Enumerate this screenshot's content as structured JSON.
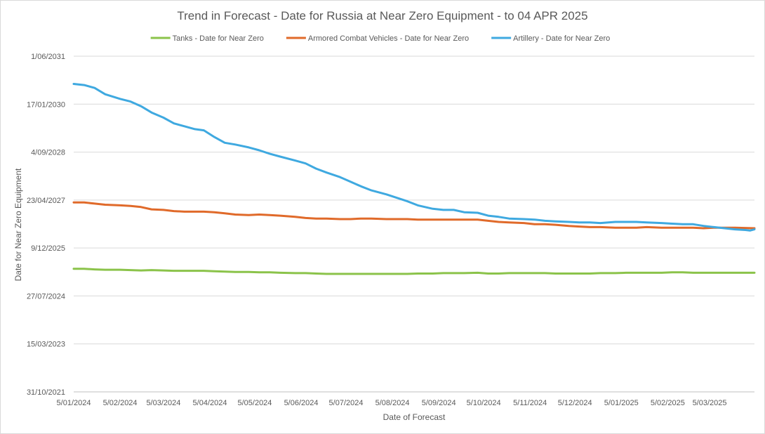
{
  "chart_data": {
    "type": "line",
    "title": "Trend in Forecast - Date for Russia at Near Zero Equipment - to 04 APR 2025",
    "xlabel": "Date of Forecast",
    "ylabel": "Date for Near Zero Equipment",
    "x_ticks": [
      "5/01/2024",
      "5/02/2024",
      "5/03/2024",
      "5/04/2024",
      "5/05/2024",
      "5/06/2024",
      "5/07/2024",
      "5/08/2024",
      "5/09/2024",
      "5/10/2024",
      "5/11/2024",
      "5/12/2024",
      "5/01/2025",
      "5/02/2025",
      "5/03/2025"
    ],
    "y_ticks": [
      "31/10/2021",
      "15/03/2023",
      "27/07/2024",
      "9/12/2025",
      "23/04/2027",
      "4/09/2028",
      "17/01/2030",
      "1/06/2031"
    ],
    "xlim": [
      "2024-01-05",
      "2025-04-04"
    ],
    "ylim": [
      "2021-10-31",
      "2031-06-01"
    ],
    "grid": true,
    "legend_position": "top",
    "series": [
      {
        "name": "Tanks - Date for Near Zero",
        "color": "#8BC34A",
        "points": [
          [
            "2024-01-05",
            "2025-05-06"
          ],
          [
            "2024-01-12",
            "2025-05-06"
          ],
          [
            "2024-01-19",
            "2025-04-30"
          ],
          [
            "2024-01-26",
            "2025-04-26"
          ],
          [
            "2024-02-05",
            "2025-04-26"
          ],
          [
            "2024-02-12",
            "2025-04-23"
          ],
          [
            "2024-02-19",
            "2025-04-19"
          ],
          [
            "2024-02-26",
            "2025-04-23"
          ],
          [
            "2024-03-05",
            "2025-04-19"
          ],
          [
            "2024-03-12",
            "2025-04-15"
          ],
          [
            "2024-03-19",
            "2025-04-15"
          ],
          [
            "2024-04-01",
            "2025-04-15"
          ],
          [
            "2024-04-08",
            "2025-04-11"
          ],
          [
            "2024-04-15",
            "2025-04-07"
          ],
          [
            "2024-04-22",
            "2025-04-03"
          ],
          [
            "2024-05-01",
            "2025-04-03"
          ],
          [
            "2024-05-08",
            "2025-03-30"
          ],
          [
            "2024-05-15",
            "2025-03-30"
          ],
          [
            "2024-05-22",
            "2025-03-26"
          ],
          [
            "2024-06-01",
            "2025-03-22"
          ],
          [
            "2024-06-08",
            "2025-03-22"
          ],
          [
            "2024-06-15",
            "2025-03-18"
          ],
          [
            "2024-06-22",
            "2025-03-14"
          ],
          [
            "2024-07-01",
            "2025-03-14"
          ],
          [
            "2024-07-15",
            "2025-03-14"
          ],
          [
            "2024-08-01",
            "2025-03-14"
          ],
          [
            "2024-08-15",
            "2025-03-14"
          ],
          [
            "2024-08-22",
            "2025-03-18"
          ],
          [
            "2024-09-01",
            "2025-03-18"
          ],
          [
            "2024-09-08",
            "2025-03-22"
          ],
          [
            "2024-09-22",
            "2025-03-22"
          ],
          [
            "2024-10-01",
            "2025-03-26"
          ],
          [
            "2024-10-08",
            "2025-03-18"
          ],
          [
            "2024-10-15",
            "2025-03-18"
          ],
          [
            "2024-10-22",
            "2025-03-22"
          ],
          [
            "2024-11-01",
            "2025-03-22"
          ],
          [
            "2024-11-15",
            "2025-03-22"
          ],
          [
            "2024-11-22",
            "2025-03-18"
          ],
          [
            "2024-12-01",
            "2025-03-18"
          ],
          [
            "2024-12-15",
            "2025-03-18"
          ],
          [
            "2024-12-22",
            "2025-03-22"
          ],
          [
            "2025-01-01",
            "2025-03-22"
          ],
          [
            "2025-01-08",
            "2025-03-26"
          ],
          [
            "2025-01-22",
            "2025-03-26"
          ],
          [
            "2025-02-01",
            "2025-03-26"
          ],
          [
            "2025-02-08",
            "2025-03-30"
          ],
          [
            "2025-02-15",
            "2025-03-30"
          ],
          [
            "2025-02-22",
            "2025-03-26"
          ],
          [
            "2025-03-05",
            "2025-03-26"
          ],
          [
            "2025-03-20",
            "2025-03-26"
          ],
          [
            "2025-04-04",
            "2025-03-26"
          ]
        ]
      },
      {
        "name": "Armored Combat Vehicles - Date for Near Zero",
        "color": "#E06A2A",
        "points": [
          [
            "2024-01-05",
            "2027-03-29"
          ],
          [
            "2024-01-12",
            "2027-03-29"
          ],
          [
            "2024-01-19",
            "2027-03-17"
          ],
          [
            "2024-01-26",
            "2027-03-05"
          ],
          [
            "2024-02-05",
            "2027-02-27"
          ],
          [
            "2024-02-12",
            "2027-02-21"
          ],
          [
            "2024-02-19",
            "2027-02-09"
          ],
          [
            "2024-02-26",
            "2027-01-16"
          ],
          [
            "2024-03-05",
            "2027-01-10"
          ],
          [
            "2024-03-12",
            "2026-12-29"
          ],
          [
            "2024-03-19",
            "2026-12-23"
          ],
          [
            "2024-04-01",
            "2026-12-23"
          ],
          [
            "2024-04-08",
            "2026-12-17"
          ],
          [
            "2024-04-15",
            "2026-12-05"
          ],
          [
            "2024-04-22",
            "2026-11-23"
          ],
          [
            "2024-05-01",
            "2026-11-17"
          ],
          [
            "2024-05-08",
            "2026-11-23"
          ],
          [
            "2024-05-15",
            "2026-11-17"
          ],
          [
            "2024-05-22",
            "2026-11-11"
          ],
          [
            "2024-06-01",
            "2026-10-30"
          ],
          [
            "2024-06-08",
            "2026-10-18"
          ],
          [
            "2024-06-15",
            "2026-10-12"
          ],
          [
            "2024-06-22",
            "2026-10-12"
          ],
          [
            "2024-07-01",
            "2026-10-06"
          ],
          [
            "2024-07-08",
            "2026-10-06"
          ],
          [
            "2024-07-15",
            "2026-10-12"
          ],
          [
            "2024-07-22",
            "2026-10-12"
          ],
          [
            "2024-08-01",
            "2026-10-06"
          ],
          [
            "2024-08-15",
            "2026-10-06"
          ],
          [
            "2024-08-22",
            "2026-10-01"
          ],
          [
            "2024-09-01",
            "2026-10-01"
          ],
          [
            "2024-09-15",
            "2026-10-01"
          ],
          [
            "2024-10-01",
            "2026-10-01"
          ],
          [
            "2024-10-08",
            "2026-09-19"
          ],
          [
            "2024-10-15",
            "2026-09-07"
          ],
          [
            "2024-10-22",
            "2026-09-01"
          ],
          [
            "2024-11-01",
            "2026-08-26"
          ],
          [
            "2024-11-08",
            "2026-08-14"
          ],
          [
            "2024-11-15",
            "2026-08-14"
          ],
          [
            "2024-11-22",
            "2026-08-08"
          ],
          [
            "2024-12-01",
            "2026-07-27"
          ],
          [
            "2024-12-08",
            "2026-07-21"
          ],
          [
            "2024-12-15",
            "2026-07-15"
          ],
          [
            "2024-12-22",
            "2026-07-15"
          ],
          [
            "2025-01-01",
            "2026-07-09"
          ],
          [
            "2025-01-15",
            "2026-07-09"
          ],
          [
            "2025-01-22",
            "2026-07-15"
          ],
          [
            "2025-02-01",
            "2026-07-09"
          ],
          [
            "2025-02-15",
            "2026-07-09"
          ],
          [
            "2025-02-22",
            "2026-07-09"
          ],
          [
            "2025-03-01",
            "2026-07-03"
          ],
          [
            "2025-03-08",
            "2026-07-09"
          ],
          [
            "2025-03-22",
            "2026-07-09"
          ],
          [
            "2025-04-04",
            "2026-07-03"
          ]
        ]
      },
      {
        "name": "Artillery - Date for Near Zero",
        "color": "#3FA9E0",
        "points": [
          [
            "2024-01-05",
            "2030-08-16"
          ],
          [
            "2024-01-12",
            "2030-08-04"
          ],
          [
            "2024-01-19",
            "2030-07-05"
          ],
          [
            "2024-01-26",
            "2030-04-30"
          ],
          [
            "2024-02-05",
            "2030-03-13"
          ],
          [
            "2024-02-12",
            "2030-02-13"
          ],
          [
            "2024-02-19",
            "2029-12-27"
          ],
          [
            "2024-02-26",
            "2029-10-22"
          ],
          [
            "2024-03-05",
            "2029-08-29"
          ],
          [
            "2024-03-12",
            "2029-06-30"
          ],
          [
            "2024-03-19",
            "2029-05-31"
          ],
          [
            "2024-03-26",
            "2029-05-01"
          ],
          [
            "2024-04-01",
            "2029-04-19"
          ],
          [
            "2024-04-08",
            "2029-02-08"
          ],
          [
            "2024-04-15",
            "2028-12-10"
          ],
          [
            "2024-04-22",
            "2028-11-22"
          ],
          [
            "2024-05-01",
            "2028-10-23"
          ],
          [
            "2024-05-08",
            "2028-09-23"
          ],
          [
            "2024-05-15",
            "2028-08-18"
          ],
          [
            "2024-05-22",
            "2028-07-19"
          ],
          [
            "2024-06-01",
            "2028-06-08"
          ],
          [
            "2024-06-08",
            "2028-05-09"
          ],
          [
            "2024-06-15",
            "2028-03-16"
          ],
          [
            "2024-06-22",
            "2028-02-04"
          ],
          [
            "2024-07-01",
            "2027-12-18"
          ],
          [
            "2024-07-08",
            "2027-10-31"
          ],
          [
            "2024-07-15",
            "2027-09-13"
          ],
          [
            "2024-07-22",
            "2027-08-02"
          ],
          [
            "2024-08-01",
            "2027-06-21"
          ],
          [
            "2024-08-08",
            "2027-05-16"
          ],
          [
            "2024-08-15",
            "2027-04-10"
          ],
          [
            "2024-08-22",
            "2027-02-27"
          ],
          [
            "2024-09-01",
            "2027-01-22"
          ],
          [
            "2024-09-08",
            "2027-01-10"
          ],
          [
            "2024-09-15",
            "2027-01-10"
          ],
          [
            "2024-09-22",
            "2026-12-17"
          ],
          [
            "2024-10-01",
            "2026-12-11"
          ],
          [
            "2024-10-08",
            "2026-11-11"
          ],
          [
            "2024-10-15",
            "2026-10-30"
          ],
          [
            "2024-10-22",
            "2026-10-12"
          ],
          [
            "2024-11-01",
            "2026-10-06"
          ],
          [
            "2024-11-08",
            "2026-10-01"
          ],
          [
            "2024-11-15",
            "2026-09-19"
          ],
          [
            "2024-11-22",
            "2026-09-13"
          ],
          [
            "2024-12-01",
            "2026-09-07"
          ],
          [
            "2024-12-08",
            "2026-09-01"
          ],
          [
            "2024-12-15",
            "2026-09-01"
          ],
          [
            "2024-12-22",
            "2026-08-26"
          ],
          [
            "2025-01-01",
            "2026-09-07"
          ],
          [
            "2025-01-15",
            "2026-09-07"
          ],
          [
            "2025-01-22",
            "2026-09-01"
          ],
          [
            "2025-02-01",
            "2026-08-26"
          ],
          [
            "2025-02-08",
            "2026-08-20"
          ],
          [
            "2025-02-15",
            "2026-08-14"
          ],
          [
            "2025-02-22",
            "2026-08-14"
          ],
          [
            "2025-03-01",
            "2026-07-27"
          ],
          [
            "2025-03-08",
            "2026-07-15"
          ],
          [
            "2025-03-15",
            "2026-07-03"
          ],
          [
            "2025-03-22",
            "2026-06-21"
          ],
          [
            "2025-03-29",
            "2026-06-15"
          ],
          [
            "2025-04-01",
            "2026-06-09"
          ],
          [
            "2025-04-04",
            "2026-06-21"
          ]
        ]
      }
    ]
  }
}
